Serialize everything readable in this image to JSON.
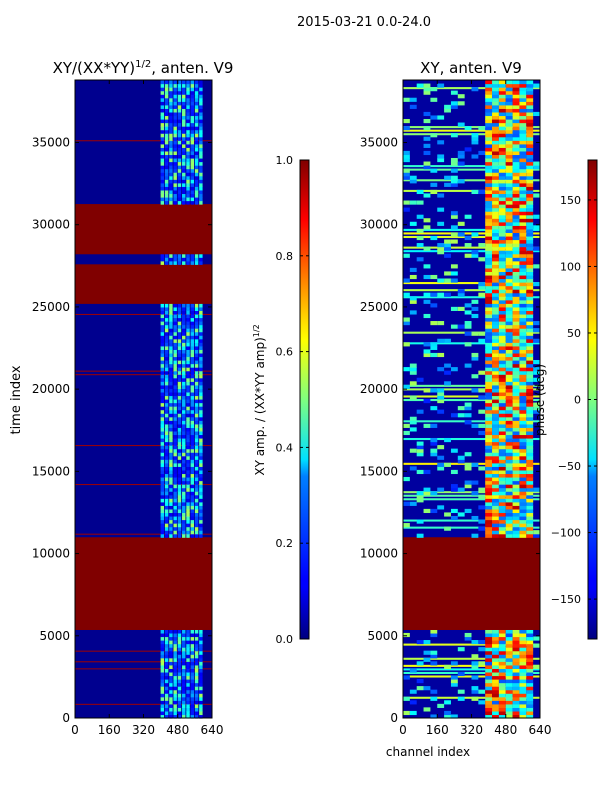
{
  "figure": {
    "suptitle": "2015-03-21 0.0-24.0"
  },
  "colors": {
    "deep_red": "#800000",
    "dark_blue": "#00007f"
  },
  "chart_data": [
    {
      "type": "heatmap",
      "id": "left",
      "title_main": "XY/(XX*YY)",
      "title_sup": "1/2",
      "title_tail": ", anten. V9",
      "xlabel": "",
      "ylabel": "time index",
      "xlim": [
        0,
        640
      ],
      "ylim": [
        0,
        38800
      ],
      "xticks": [
        0,
        160,
        320,
        480,
        640
      ],
      "yticks": [
        0,
        5000,
        10000,
        15000,
        20000,
        25000,
        30000,
        35000
      ],
      "colorbar": {
        "label": "XY amp. / (XX*YY amp)^1/2",
        "range": [
          0.0,
          1.0
        ],
        "ticks": [
          "0.0",
          "0.2",
          "0.4",
          "0.6",
          "0.8",
          "1.0"
        ],
        "tick_values": [
          0.0,
          0.2,
          0.4,
          0.6,
          0.8,
          1.0
        ]
      },
      "saturated_time_ranges": [
        [
          5300,
          10900
        ],
        [
          25300,
          27600
        ],
        [
          28300,
          31200
        ]
      ],
      "active_channel_range": [
        400,
        600
      ]
    },
    {
      "type": "heatmap",
      "id": "right",
      "title": "XY, anten. V9",
      "xlabel": "channel index",
      "ylabel": "",
      "xlim": [
        0,
        640
      ],
      "ylim": [
        0,
        38800
      ],
      "xticks": [
        0,
        160,
        320,
        480,
        640
      ],
      "yticks": [
        0,
        5000,
        10000,
        15000,
        20000,
        25000,
        30000,
        35000
      ],
      "colorbar": {
        "label": "phase (deg)",
        "range": [
          -180,
          180
        ],
        "ticks": [
          "−150",
          "−100",
          "−50",
          "0",
          "50",
          "100",
          "150"
        ],
        "tick_values": [
          -150,
          -100,
          -50,
          0,
          50,
          100,
          150
        ]
      },
      "saturated_time_ranges": [
        [
          5300,
          10900
        ]
      ],
      "active_channel_range": [
        400,
        600
      ]
    }
  ]
}
